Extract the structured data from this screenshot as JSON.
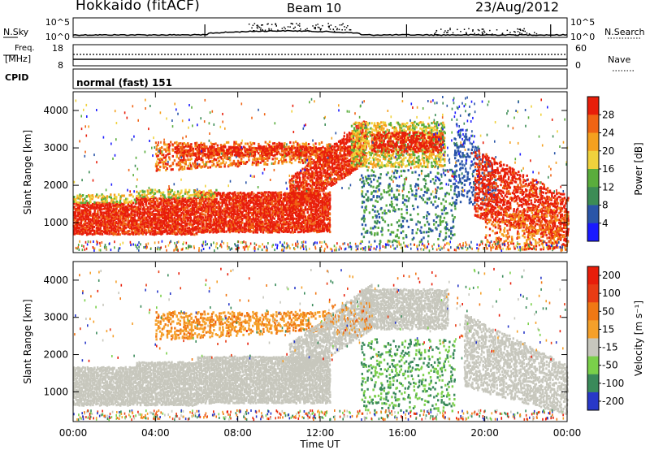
{
  "header": {
    "title_left": "Hokkaido (fitACF)",
    "title_center": "Beam 10",
    "title_right": "23/Aug/2012"
  },
  "top_panels": {
    "nsky_label": "N.Sky",
    "nsearch_label": "N.Search",
    "nsky_ticks": [
      "10^5",
      "10^0"
    ],
    "nsearch_ticks": [
      "10^5",
      "10^0"
    ],
    "freq_label": "Freq.",
    "freq_unit": "[MHz]",
    "freq_ticks": [
      "18",
      "8"
    ],
    "nave_label": "Nave",
    "nave_ticks": [
      "60",
      "0"
    ],
    "cpid_label": "CPID",
    "mode_label": "normal (fast) 151"
  },
  "colors": {
    "power_scale": [
      "#1a1aff",
      "#2a55a8",
      "#3c8c55",
      "#5aad3c",
      "#f0d23c",
      "#f5a01e",
      "#f06414",
      "#e81e0a"
    ],
    "velocity_scale": [
      "#2838c8",
      "#3a8a5a",
      "#7ad04a",
      "#c7c7bd",
      "#f5a02a",
      "#f07814",
      "#e83c14",
      "#e81e0a"
    ]
  },
  "chart_data": [
    {
      "type": "heatmap",
      "title": "",
      "xlabel": "Time UT",
      "ylabel": "Slant Range [km]",
      "x_ticks": [
        "00:00",
        "04:00",
        "08:00",
        "12:00",
        "16:00",
        "20:00",
        "00:00"
      ],
      "y_ticks": [
        "1000",
        "2000",
        "3000",
        "4000"
      ],
      "xlim": [
        "00:00",
        "24:00"
      ],
      "ylim": [
        200,
        4500
      ],
      "colorbar_label": "Power [dB]",
      "colorbar_ticks": [
        "4",
        "8",
        "12",
        "16",
        "20",
        "24",
        "28"
      ],
      "colorbar_range": [
        0,
        32
      ]
    },
    {
      "type": "heatmap",
      "title": "",
      "xlabel": "Time UT",
      "ylabel": "Slant Range [km]",
      "x_ticks": [
        "00:00",
        "04:00",
        "08:00",
        "12:00",
        "16:00",
        "20:00",
        "00:00"
      ],
      "y_ticks": [
        "1000",
        "2000",
        "3000",
        "4000"
      ],
      "xlim": [
        "00:00",
        "24:00"
      ],
      "ylim": [
        200,
        4500
      ],
      "colorbar_label": "Velocity [m s⁻¹]",
      "colorbar_ticks": [
        "200",
        "100",
        "50",
        "15",
        "-15",
        "-50",
        "-100",
        "-200"
      ],
      "colorbar_range": [
        -250,
        250
      ]
    }
  ],
  "x_axis_title": "Time UT"
}
